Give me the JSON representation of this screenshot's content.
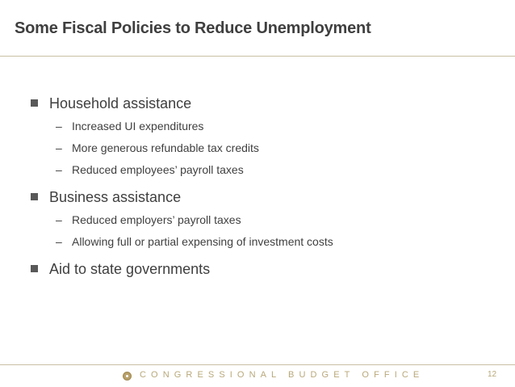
{
  "slide": {
    "title": "Some Fiscal Policies to Reduce Unemployment",
    "bullets": [
      {
        "text": "Household assistance",
        "subitems": [
          "Increased UI expenditures",
          "More generous refundable tax credits",
          "Reduced employees’ payroll taxes"
        ]
      },
      {
        "text": "Business assistance",
        "subitems": [
          "Reduced employers’ payroll taxes",
          "Allowing full or partial expensing of investment costs"
        ]
      },
      {
        "text": "Aid to state governments",
        "subitems": []
      }
    ],
    "sub_marker": "–"
  },
  "footer": {
    "organization": "CONGRESSIONAL BUDGET OFFICE",
    "page_number": "12",
    "logo_icon": "cbo-seal-icon",
    "accent_color": "#b8a87a"
  }
}
